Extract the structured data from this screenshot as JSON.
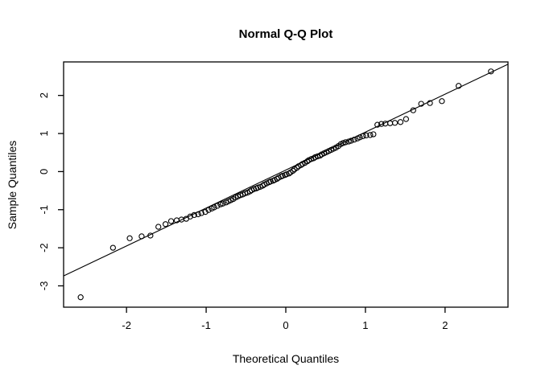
{
  "title": "Normal Q-Q Plot",
  "axes": {
    "x_label": "Theoretical Quantiles",
    "y_label": "Sample Quantiles"
  },
  "chart_data": {
    "type": "scatter",
    "title": "Normal Q-Q Plot",
    "xlabel": "Theoretical Quantiles",
    "ylabel": "Sample Quantiles",
    "xlim": [
      -2.79,
      2.79
    ],
    "ylim": [
      -3.56,
      2.88
    ],
    "x_ticks": [
      -2,
      -1,
      0,
      1,
      2
    ],
    "y_ticks": [
      -3,
      -2,
      -1,
      0,
      1,
      2
    ],
    "grid": false,
    "legend_position": "none",
    "marker": "open-circle",
    "colors": {
      "points": "#000000",
      "line": "#000000",
      "box": "#000000",
      "background": "#ffffff"
    },
    "reference_line": {
      "x1": -2.79,
      "y1": -2.74,
      "x2": 2.79,
      "y2": 2.82
    },
    "points": [
      [
        -2.576,
        -3.3
      ],
      [
        -2.17,
        -2.0
      ],
      [
        -1.96,
        -1.75
      ],
      [
        -1.81,
        -1.7
      ],
      [
        -1.7,
        -1.68
      ],
      [
        -1.6,
        -1.45
      ],
      [
        -1.51,
        -1.38
      ],
      [
        -1.44,
        -1.3
      ],
      [
        -1.37,
        -1.28
      ],
      [
        -1.31,
        -1.26
      ],
      [
        -1.25,
        -1.24
      ],
      [
        -1.2,
        -1.18
      ],
      [
        -1.15,
        -1.14
      ],
      [
        -1.1,
        -1.12
      ],
      [
        -1.06,
        -1.09
      ],
      [
        -1.01,
        -1.06
      ],
      [
        -0.97,
        -1.01
      ],
      [
        -0.93,
        -0.97
      ],
      [
        -0.9,
        -0.94
      ],
      [
        -0.86,
        -0.9
      ],
      [
        -0.82,
        -0.86
      ],
      [
        -0.79,
        -0.84
      ],
      [
        -0.75,
        -0.81
      ],
      [
        -0.72,
        -0.78
      ],
      [
        -0.69,
        -0.75
      ],
      [
        -0.66,
        -0.72
      ],
      [
        -0.63,
        -0.68
      ],
      [
        -0.6,
        -0.65
      ],
      [
        -0.57,
        -0.62
      ],
      [
        -0.54,
        -0.6
      ],
      [
        -0.51,
        -0.57
      ],
      [
        -0.48,
        -0.55
      ],
      [
        -0.45,
        -0.52
      ],
      [
        -0.43,
        -0.49
      ],
      [
        -0.4,
        -0.46
      ],
      [
        -0.37,
        -0.44
      ],
      [
        -0.35,
        -0.42
      ],
      [
        -0.32,
        -0.4
      ],
      [
        -0.29,
        -0.37
      ],
      [
        -0.27,
        -0.34
      ],
      [
        -0.24,
        -0.31
      ],
      [
        -0.21,
        -0.28
      ],
      [
        -0.19,
        -0.26
      ],
      [
        -0.16,
        -0.24
      ],
      [
        -0.14,
        -0.22
      ],
      [
        -0.11,
        -0.19
      ],
      [
        -0.09,
        -0.16
      ],
      [
        -0.06,
        -0.13
      ],
      [
        -0.04,
        -0.11
      ],
      [
        -0.01,
        -0.09
      ],
      [
        0.01,
        -0.07
      ],
      [
        0.04,
        -0.05
      ],
      [
        0.06,
        -0.02
      ],
      [
        0.09,
        0.02
      ],
      [
        0.11,
        0.06
      ],
      [
        0.14,
        0.1
      ],
      [
        0.16,
        0.14
      ],
      [
        0.19,
        0.17
      ],
      [
        0.21,
        0.2
      ],
      [
        0.24,
        0.23
      ],
      [
        0.27,
        0.27
      ],
      [
        0.29,
        0.3
      ],
      [
        0.32,
        0.33
      ],
      [
        0.35,
        0.35
      ],
      [
        0.37,
        0.38
      ],
      [
        0.4,
        0.4
      ],
      [
        0.43,
        0.42
      ],
      [
        0.45,
        0.45
      ],
      [
        0.48,
        0.48
      ],
      [
        0.51,
        0.51
      ],
      [
        0.54,
        0.54
      ],
      [
        0.57,
        0.57
      ],
      [
        0.6,
        0.6
      ],
      [
        0.63,
        0.63
      ],
      [
        0.66,
        0.67
      ],
      [
        0.69,
        0.72
      ],
      [
        0.72,
        0.75
      ],
      [
        0.75,
        0.77
      ],
      [
        0.79,
        0.79
      ],
      [
        0.82,
        0.81
      ],
      [
        0.86,
        0.84
      ],
      [
        0.9,
        0.87
      ],
      [
        0.93,
        0.9
      ],
      [
        0.97,
        0.93
      ],
      [
        1.01,
        0.95
      ],
      [
        1.06,
        0.96
      ],
      [
        1.1,
        0.98
      ],
      [
        1.15,
        1.23
      ],
      [
        1.2,
        1.25
      ],
      [
        1.25,
        1.26
      ],
      [
        1.31,
        1.27
      ],
      [
        1.37,
        1.28
      ],
      [
        1.44,
        1.3
      ],
      [
        1.51,
        1.38
      ],
      [
        1.6,
        1.61
      ],
      [
        1.7,
        1.78
      ],
      [
        1.81,
        1.8
      ],
      [
        1.96,
        1.85
      ],
      [
        2.17,
        2.25
      ],
      [
        2.576,
        2.63
      ]
    ]
  }
}
